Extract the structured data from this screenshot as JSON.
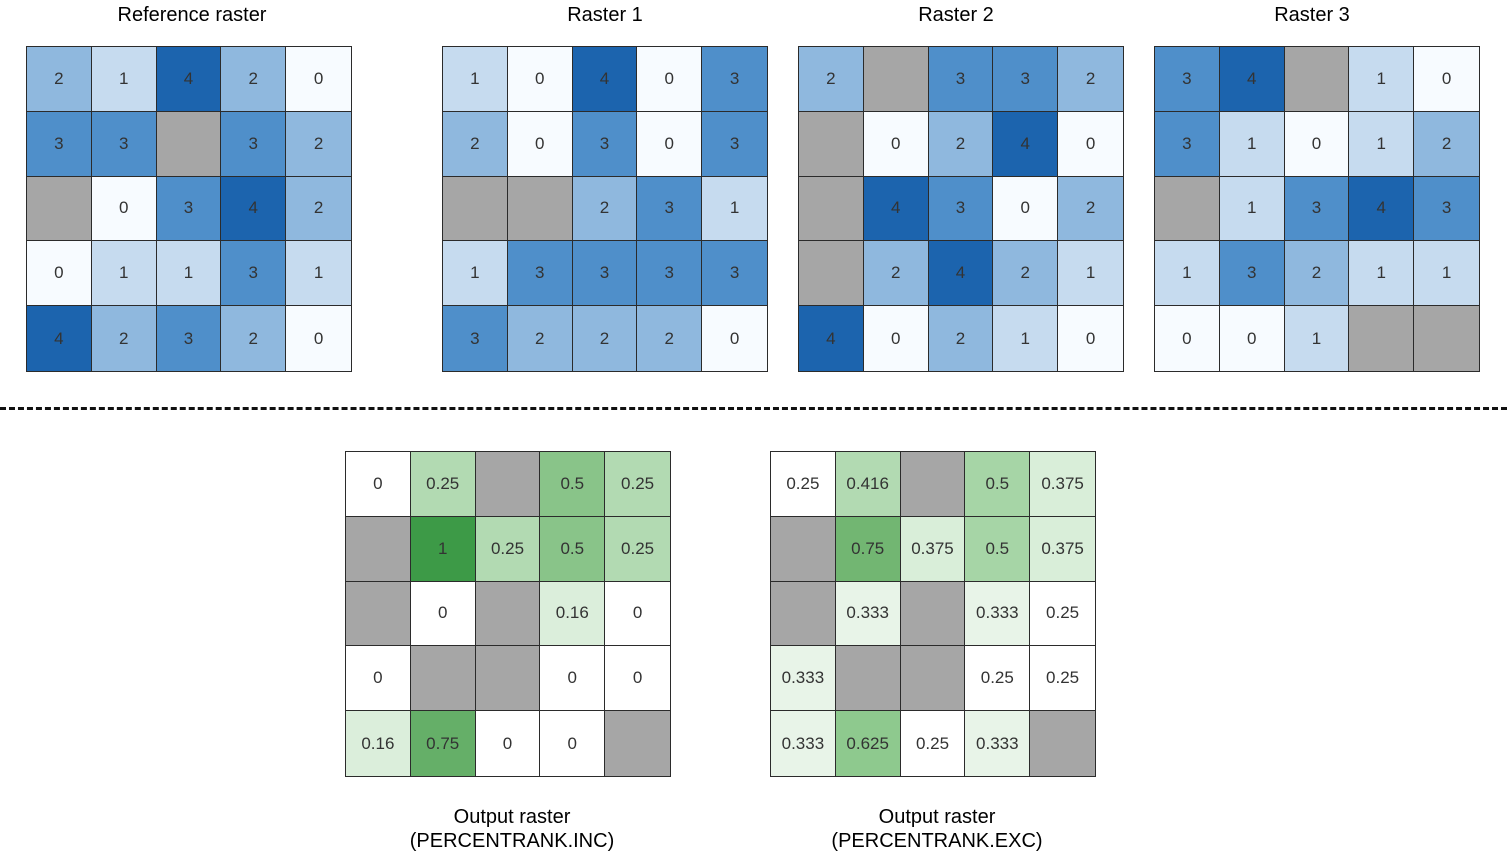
{
  "colors": {
    "nodata": "#a6a6a6",
    "blue": {
      "0": "#f7fbff",
      "1": "#c6dbef",
      "2": "#8fb8de",
      "3": "#4f8fca",
      "4": "#1c64ae"
    },
    "green": {
      "0": "#ffffff",
      "0.16": "#dbeedb",
      "0.25": "#b2dab2",
      "0.5": "#89c489",
      "0.75": "#65af68",
      "1": "#3d9a47",
      "0.25e": "#ffffff",
      "0.333": "#e8f4e8",
      "0.375": "#d9eed9",
      "0.416": "#b2dab2",
      "0.5e": "#a6d5a6",
      "0.625": "#8ec98e",
      "0.75e": "#72b672"
    }
  },
  "grids": [
    {
      "id": "reference",
      "title": "Reference raster",
      "palette": "blue",
      "cells": [
        [
          "2",
          "1",
          "4",
          "2",
          "0"
        ],
        [
          "3",
          "3",
          null,
          "3",
          "2"
        ],
        [
          null,
          "0",
          "3",
          "4",
          "2"
        ],
        [
          "0",
          "1",
          "1",
          "3",
          "1"
        ],
        [
          "4",
          "2",
          "3",
          "2",
          "0"
        ]
      ]
    },
    {
      "id": "raster1",
      "title": "Raster 1",
      "palette": "blue",
      "cells": [
        [
          "1",
          "0",
          "4",
          "0",
          "3"
        ],
        [
          "2",
          "0",
          "3",
          "0",
          "3"
        ],
        [
          null,
          null,
          "2",
          "3",
          "1"
        ],
        [
          "1",
          "3",
          "3",
          "3",
          "3"
        ],
        [
          "3",
          "2",
          "2",
          "2",
          "0"
        ]
      ]
    },
    {
      "id": "raster2",
      "title": "Raster 2",
      "palette": "blue",
      "cells": [
        [
          "2",
          null,
          "3",
          "3",
          "2"
        ],
        [
          null,
          "0",
          "2",
          "4",
          "0"
        ],
        [
          null,
          "4",
          "3",
          "0",
          "2"
        ],
        [
          null,
          "2",
          "4",
          "2",
          "1"
        ],
        [
          "4",
          "0",
          "2",
          "1",
          "0"
        ]
      ]
    },
    {
      "id": "raster3",
      "title": "Raster 3",
      "palette": "blue",
      "cells": [
        [
          "3",
          "4",
          null,
          "1",
          "0"
        ],
        [
          "3",
          "1",
          "0",
          "1",
          "2"
        ],
        [
          null,
          "1",
          "3",
          "4",
          "3"
        ],
        [
          "1",
          "3",
          "2",
          "1",
          "1"
        ],
        [
          "0",
          "0",
          "1",
          null,
          null
        ]
      ]
    },
    {
      "id": "output-inc",
      "title": "",
      "palette": "green",
      "cells": [
        [
          "0",
          "0.25",
          null,
          "0.5",
          "0.25"
        ],
        [
          null,
          "1",
          "0.25",
          "0.5",
          "0.25"
        ],
        [
          null,
          "0",
          null,
          "0.16",
          "0"
        ],
        [
          "0",
          null,
          null,
          "0",
          "0"
        ],
        [
          "0.16",
          "0.75",
          "0",
          "0",
          null
        ]
      ]
    },
    {
      "id": "output-exc",
      "title": "",
      "palette": "green-exc",
      "cells": [
        [
          "0.25",
          "0.416",
          null,
          "0.5",
          "0.375"
        ],
        [
          null,
          "0.75",
          "0.375",
          "0.5",
          "0.375"
        ],
        [
          null,
          "0.333",
          null,
          "0.333",
          "0.25"
        ],
        [
          "0.333",
          null,
          null,
          "0.25",
          "0.25"
        ],
        [
          "0.333",
          "0.625",
          "0.25",
          "0.333",
          null
        ]
      ]
    }
  ],
  "captions": {
    "inc_line1": "Output raster",
    "inc_line2": "(PERCENTRANK.INC)",
    "exc_line1": "Output raster",
    "exc_line2": "(PERCENTRANK.EXC)"
  }
}
